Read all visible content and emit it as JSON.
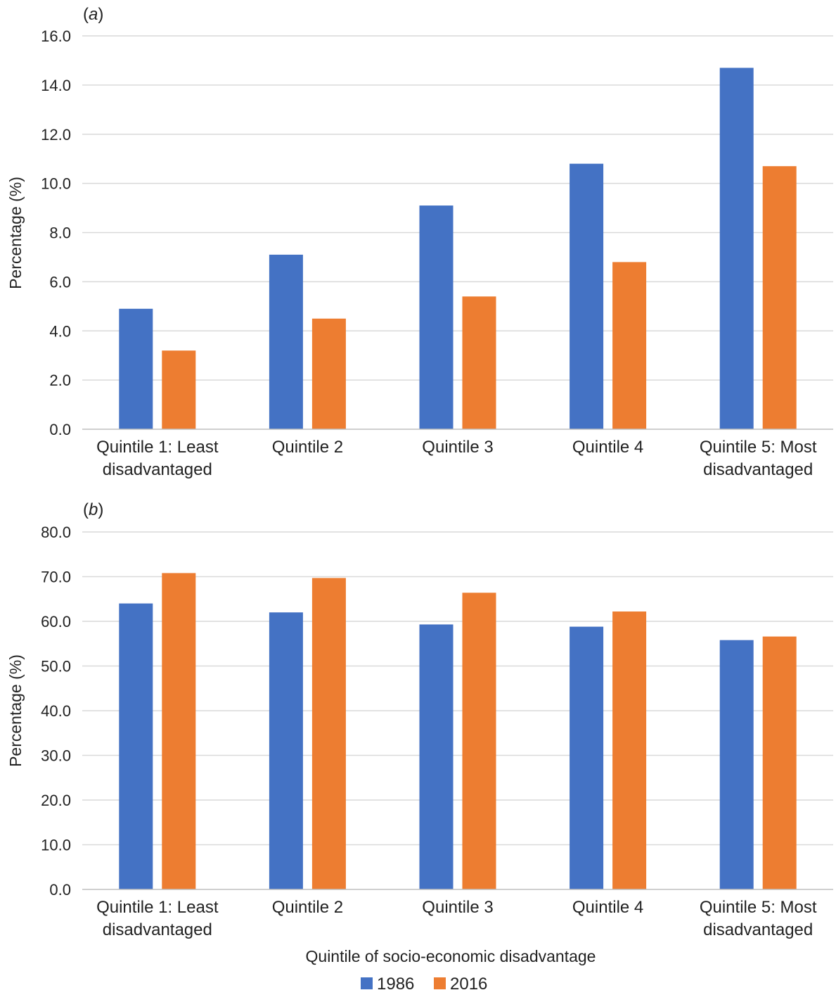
{
  "colors": {
    "s1986": "#4472C4",
    "s2016": "#ED7D31",
    "grid": "#D9D9D9",
    "axis": "#BFBFBF"
  },
  "legend": [
    {
      "name": "1986",
      "color": "#4472C4"
    },
    {
      "name": "2016",
      "color": "#ED7D31"
    }
  ],
  "shared_xlabel": "Quintile of socio-economic disadvantage",
  "chart_data": [
    {
      "type": "bar",
      "panel_label": "a",
      "ylabel": "Percentage (%)",
      "ylim": [
        0,
        16
      ],
      "yticks": [
        "0.0",
        "2.0",
        "4.0",
        "6.0",
        "8.0",
        "10.0",
        "12.0",
        "14.0",
        "16.0"
      ],
      "categories": [
        [
          "Quintile 1: Least",
          "disadvantaged"
        ],
        [
          "Quintile 2"
        ],
        [
          "Quintile 3"
        ],
        [
          "Quintile 4"
        ],
        [
          "Quintile 5: Most",
          "disadvantaged"
        ]
      ],
      "series": [
        {
          "name": "1986",
          "values": [
            4.9,
            7.1,
            9.1,
            10.8,
            14.7
          ]
        },
        {
          "name": "2016",
          "values": [
            3.2,
            4.5,
            5.4,
            6.8,
            10.7
          ]
        }
      ],
      "grid": true
    },
    {
      "type": "bar",
      "panel_label": "b",
      "ylabel": "Percentage (%)",
      "ylim": [
        0,
        80
      ],
      "yticks": [
        "0.0",
        "10.0",
        "20.0",
        "30.0",
        "40.0",
        "50.0",
        "60.0",
        "70.0",
        "80.0"
      ],
      "categories": [
        [
          "Quintile 1: Least",
          "disadvantaged"
        ],
        [
          "Quintile 2"
        ],
        [
          "Quintile 3"
        ],
        [
          "Quintile 4"
        ],
        [
          "Quintile 5: Most",
          "disadvantaged"
        ]
      ],
      "series": [
        {
          "name": "1986",
          "values": [
            64.0,
            62.0,
            59.3,
            58.8,
            55.8
          ]
        },
        {
          "name": "2016",
          "values": [
            70.8,
            69.7,
            66.4,
            62.2,
            56.6
          ]
        }
      ],
      "grid": true,
      "legend_position": "bottom"
    }
  ]
}
